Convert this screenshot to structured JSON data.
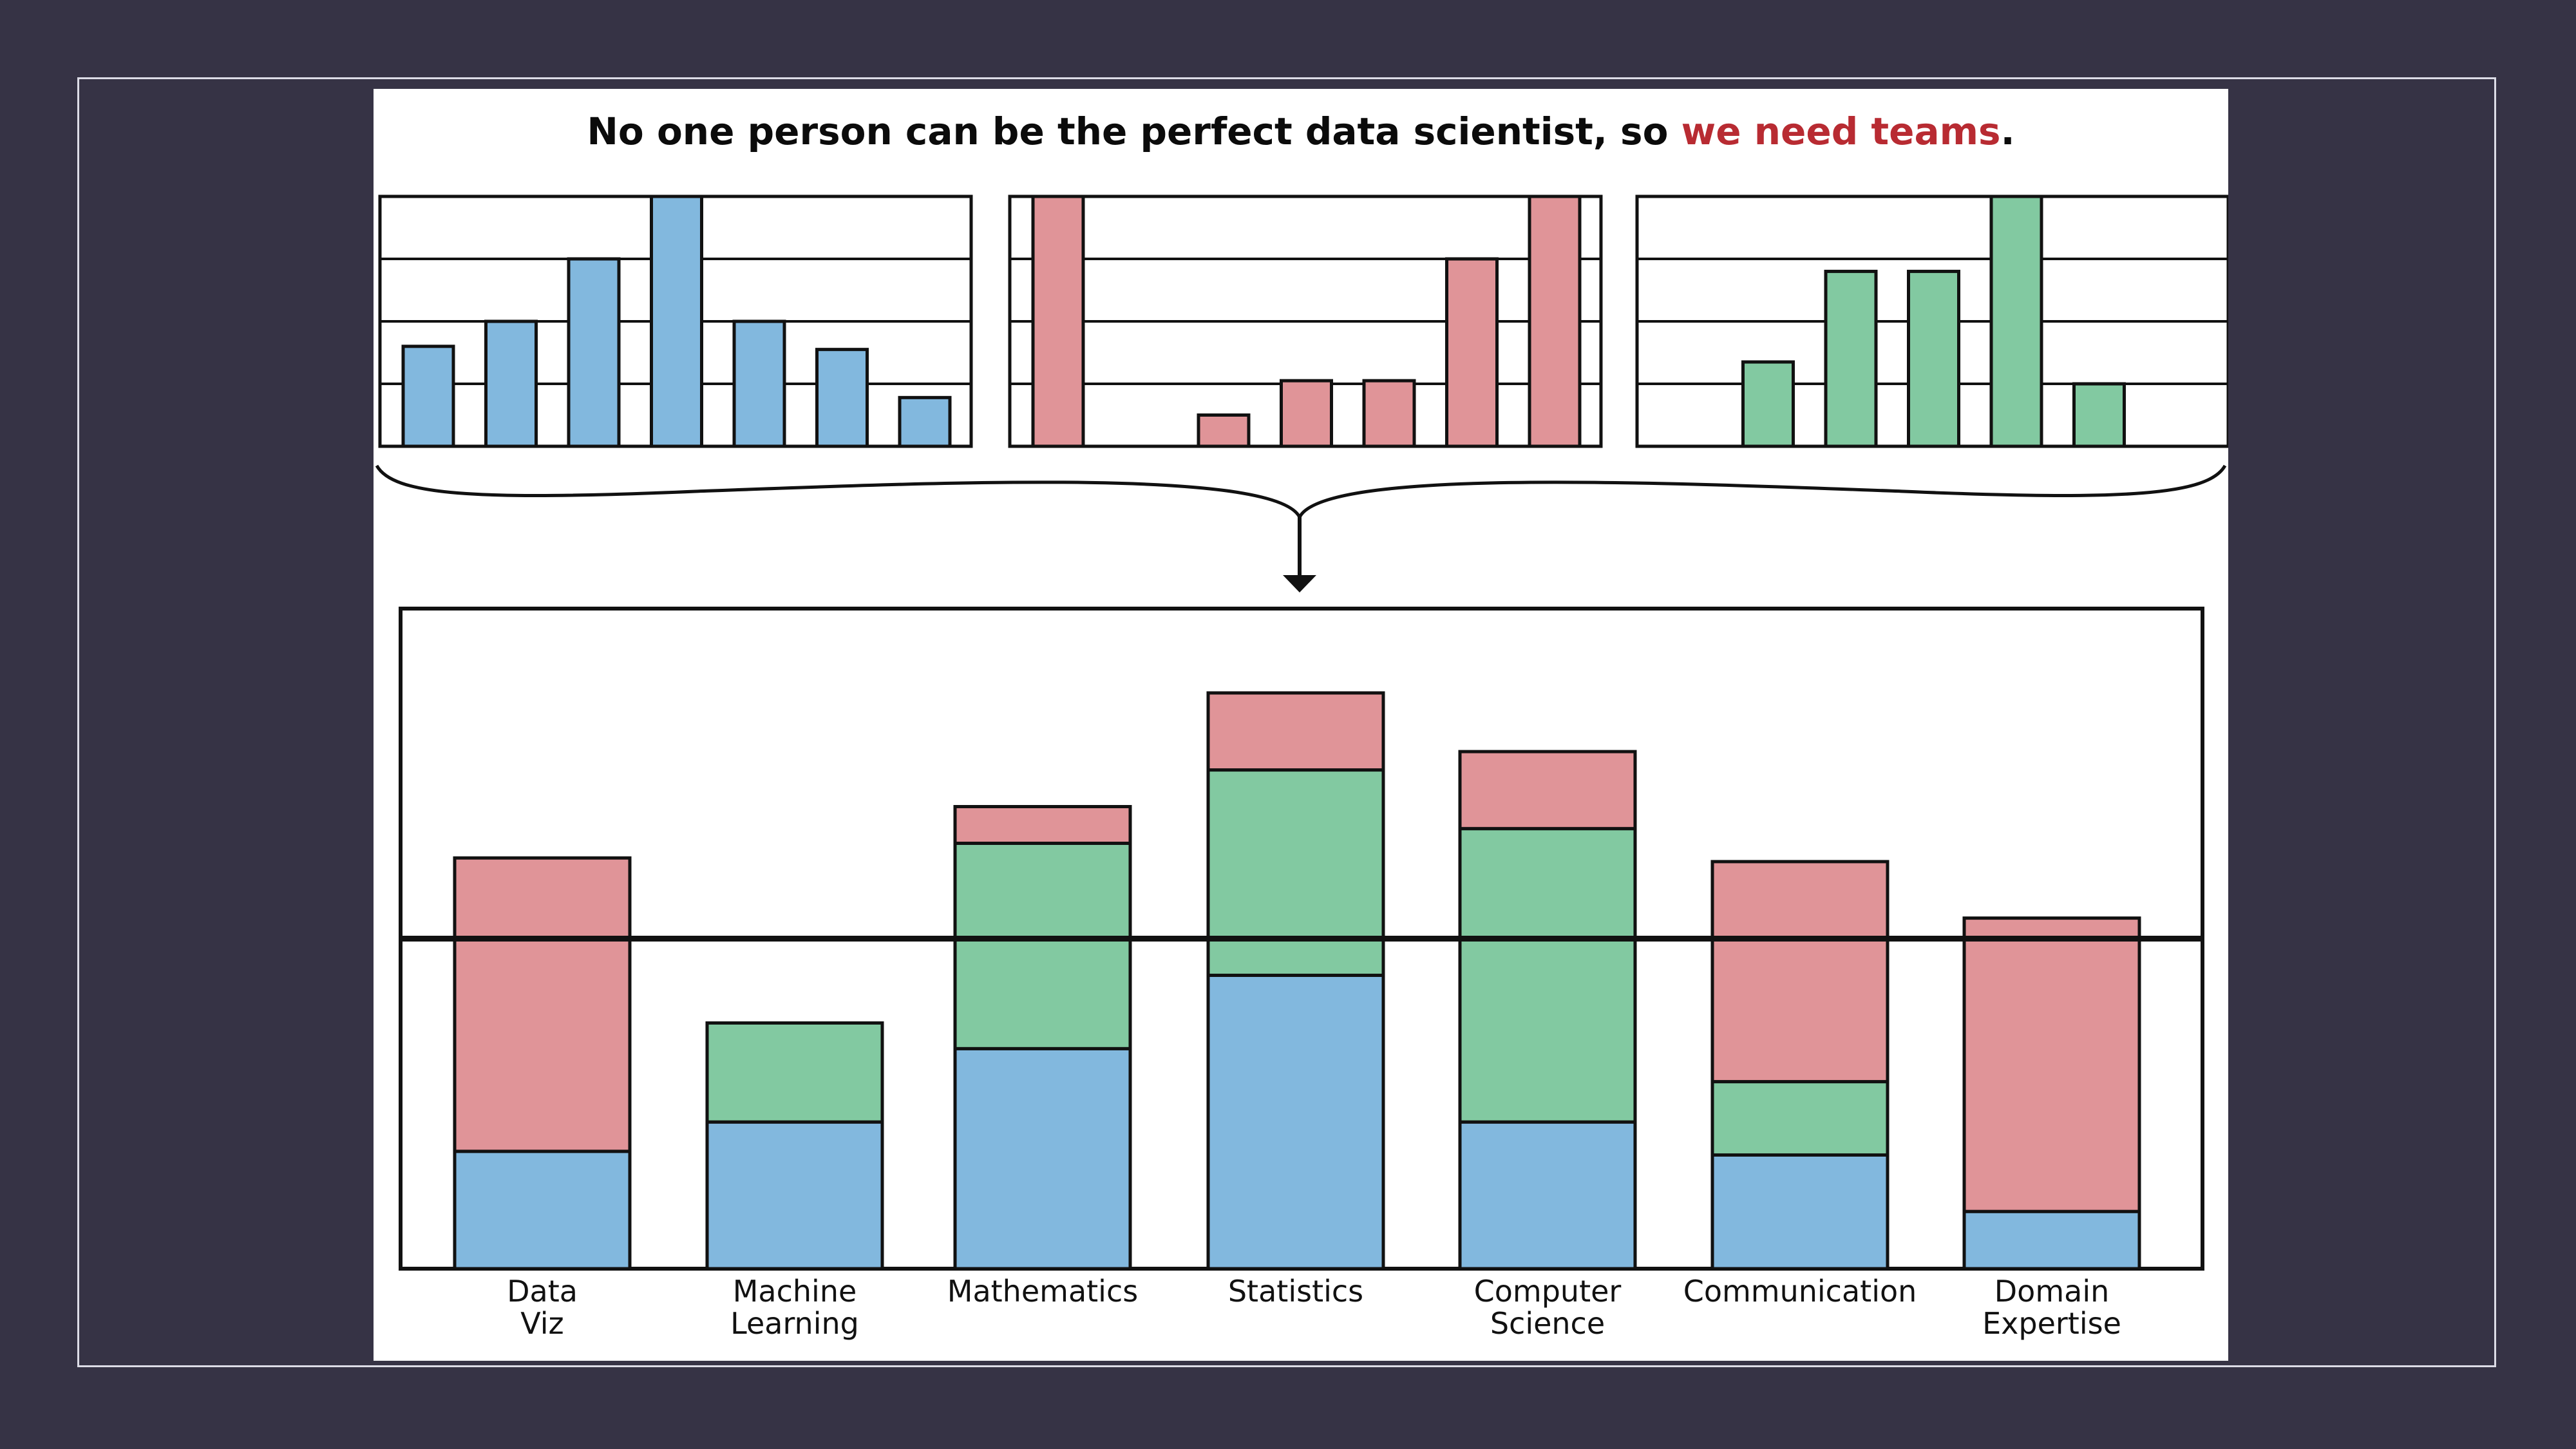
{
  "title": {
    "prefix": "No one person can be the perfect data scientist, so ",
    "highlight": "we need teams",
    "suffix": "."
  },
  "colors": {
    "blue": "#82b8de",
    "red": "#e09498",
    "green": "#82c9a1",
    "highlight": "#b82b32",
    "frame_bg": "#363345"
  },
  "chart_data": [
    {
      "type": "bar",
      "series_color": "blue",
      "values": [
        1.6,
        2.0,
        3.0,
        4.0,
        2.0,
        1.55,
        0.78
      ],
      "ylim": [
        0,
        4
      ],
      "grid": true
    },
    {
      "type": "bar",
      "series_color": "red",
      "values": [
        4.0,
        0,
        0.5,
        1.05,
        1.05,
        3.0,
        4.0
      ],
      "ylim": [
        0,
        4
      ],
      "grid": true
    },
    {
      "type": "bar",
      "series_color": "green",
      "values": [
        0,
        1.35,
        2.8,
        2.8,
        4.0,
        1.0,
        0
      ],
      "ylim": [
        0,
        4
      ],
      "grid": true
    },
    {
      "type": "bar",
      "stacked": true,
      "categories": [
        "Data\nViz",
        "Machine\nLearning",
        "Mathematics",
        "Statistics",
        "Computer\nScience",
        "Communication",
        "Domain\nExpertise"
      ],
      "series": [
        {
          "color": "blue",
          "values": [
            1.6,
            2.0,
            3.0,
            4.0,
            2.0,
            1.55,
            0.78
          ]
        },
        {
          "color": "green",
          "values": [
            0,
            1.35,
            2.8,
            2.8,
            4.0,
            1.0,
            0
          ]
        },
        {
          "color": "red",
          "values": [
            4.0,
            0,
            0.5,
            1.05,
            1.05,
            3.0,
            4.0
          ]
        }
      ],
      "ylim": [
        0,
        9
      ],
      "reference_line": 4.5
    }
  ]
}
